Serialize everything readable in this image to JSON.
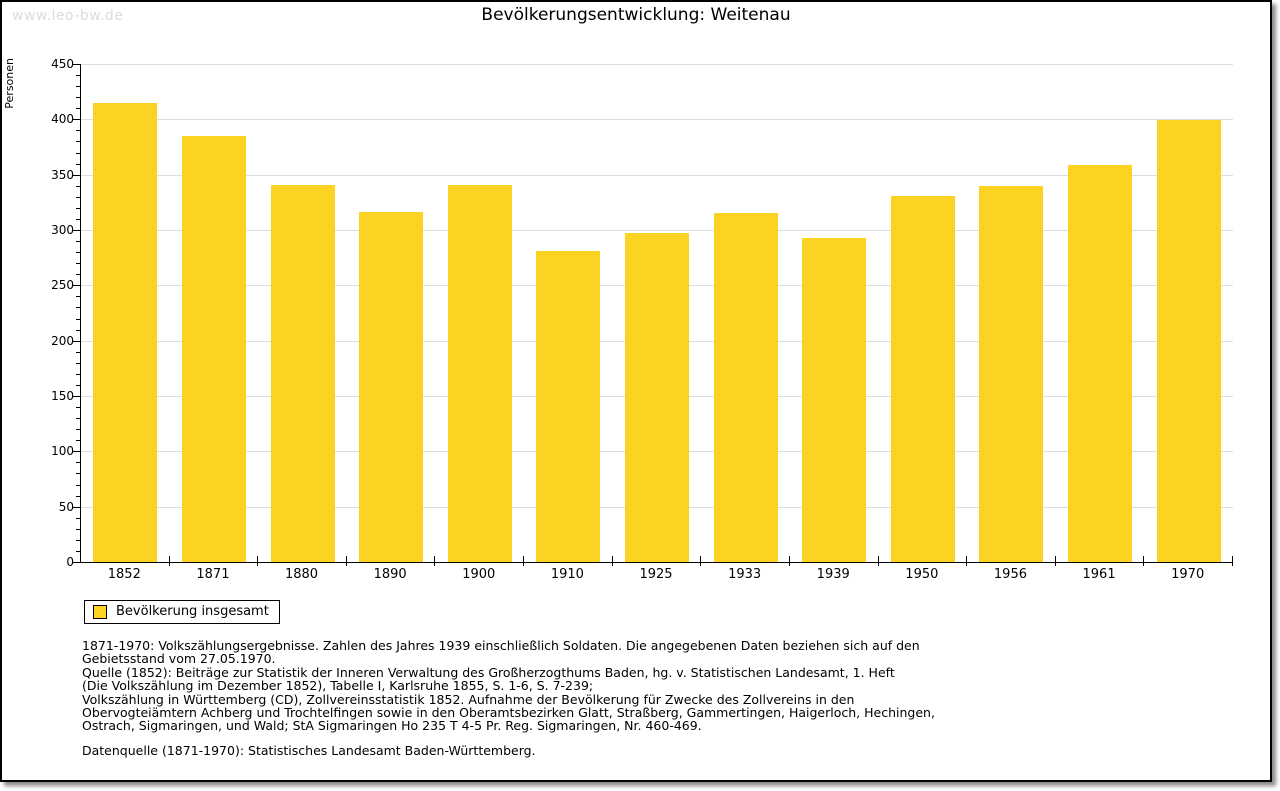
{
  "watermark": "www.leo-bw.de",
  "title": "Bevölkerungsentwicklung: Weitenau",
  "chart_data": {
    "type": "bar",
    "title": "Bevölkerungsentwicklung: Weitenau",
    "categories": [
      "1852",
      "1871",
      "1880",
      "1890",
      "1900",
      "1910",
      "1925",
      "1933",
      "1939",
      "1950",
      "1956",
      "1961",
      "1970"
    ],
    "values": [
      415,
      385,
      341,
      316,
      341,
      281,
      297,
      315,
      293,
      331,
      340,
      359,
      399
    ],
    "series_name": "Bevölkerung insgesamt",
    "xlabel": "",
    "ylabel": "Personen",
    "ylim": [
      0,
      450
    ],
    "ytick_major": 50,
    "ytick_minor": 10,
    "grid": true,
    "legend_position": "below-left",
    "bar_color": "#FCD223"
  },
  "legend": {
    "label": "Bevölkerung insgesamt"
  },
  "footnotes": [
    "1871-1970: Volkszählungsergebnisse. Zahlen des Jahres 1939 einschließlich Soldaten. Die angegebenen Daten beziehen sich auf den",
    "Gebietsstand vom 27.05.1970.",
    "Quelle (1852): Beiträge zur Statistik der Inneren Verwaltung des Großherzogthums Baden, hg. v. Statistischen Landesamt, 1. Heft",
    "(Die Volkszählung im Dezember 1852), Tabelle I, Karlsruhe 1855, S. 1-6, S. 7-239;",
    "Volkszählung in Württemberg (CD), Zollvereinsstatistik 1852. Aufnahme der Bevölkerung für Zwecke des Zollvereins in den",
    "Obervogteiämtern Achberg und Trochtelfingen sowie in den Oberamtsbezirken Glatt, Straßberg, Gammertingen, Haigerloch, Hechingen,",
    "Ostrach, Sigmaringen, und Wald; StA Sigmaringen Ho 235 T 4-5 Pr. Reg. Sigmaringen, Nr. 460-469."
  ],
  "datasource": "Datenquelle (1871-1970): Statistisches Landesamt Baden-Württemberg.",
  "colors": {
    "bar": "#FCD223",
    "grid": "#DDDDDD",
    "axis": "#000000",
    "watermark": "#DCDCDC"
  }
}
